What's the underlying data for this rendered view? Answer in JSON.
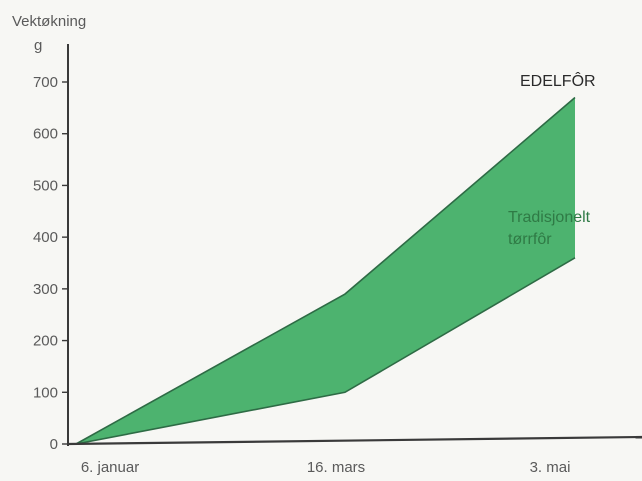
{
  "chart_data": {
    "type": "area",
    "ylabel": "Vektøkning",
    "yunit": "g",
    "ylim": [
      0,
      700
    ],
    "yticks": [
      0,
      100,
      200,
      300,
      400,
      500,
      600,
      700
    ],
    "x": [
      "6. januar",
      "16. mars",
      "3. mai"
    ],
    "series": [
      {
        "name": "EDELFÔR",
        "values": [
          0,
          290,
          670
        ]
      },
      {
        "name": "Tradisjonelt tørrfôr",
        "values": [
          0,
          100,
          360
        ]
      }
    ],
    "grid": false,
    "colors": {
      "band_fill": "#4db36f",
      "band_stroke": "#2e6b45",
      "axis": "#3a3a3a",
      "text": "#5a5a5a",
      "label_dark": "#2a2a2a",
      "label_green": "#2f7a45"
    }
  }
}
